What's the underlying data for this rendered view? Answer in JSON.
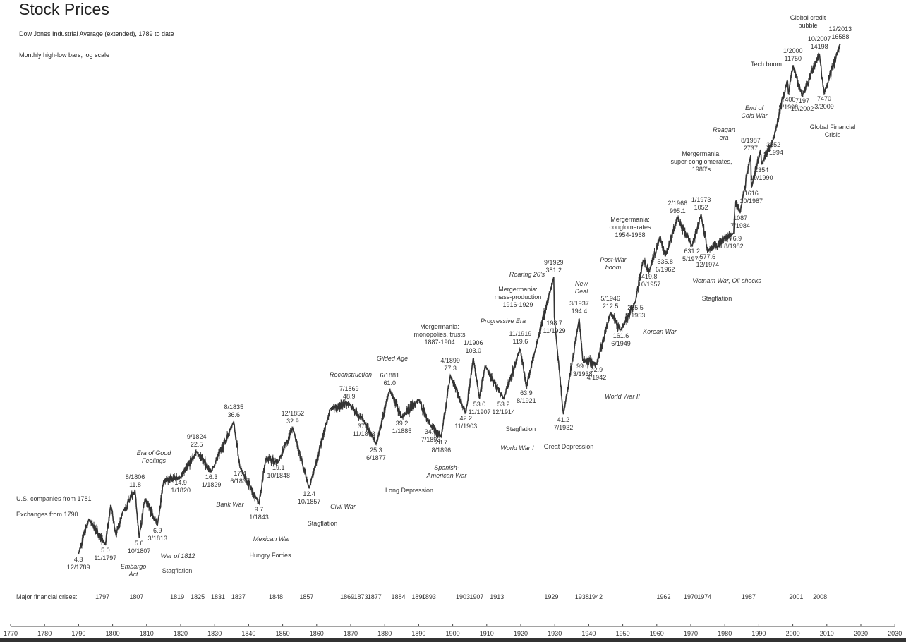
{
  "chart_data": {
    "type": "line",
    "title": "Stock Prices",
    "subtitle": "Dow Jones Industrial Average (extended), 1789 to date",
    "note": "Monthly high-low bars, log scale",
    "y_scale": "log",
    "ylim": [
      4,
      18000
    ],
    "xlim": [
      1770,
      2030
    ],
    "grid": false,
    "x_ticks": [
      1770,
      1780,
      1790,
      1800,
      1810,
      1820,
      1830,
      1840,
      1850,
      1860,
      1870,
      1880,
      1890,
      1900,
      1910,
      1920,
      1930,
      1940,
      1950,
      1960,
      1970,
      1980,
      1990,
      2000,
      2010,
      2020,
      2030
    ],
    "labeled_points": [
      {
        "date": "12/1789",
        "value": "4.3",
        "kind": "trough"
      },
      {
        "date": "11/1797",
        "value": "5.0",
        "kind": "trough"
      },
      {
        "date": "8/1806",
        "value": "11.8",
        "kind": "peak"
      },
      {
        "date": "10/1807",
        "value": "5.6",
        "kind": "trough"
      },
      {
        "date": "3/1813",
        "value": "6.9",
        "kind": "trough"
      },
      {
        "date": "1/1820",
        "value": "14.9",
        "kind": "trough"
      },
      {
        "date": "9/1824",
        "value": "22.5",
        "kind": "peak"
      },
      {
        "date": "1/1829",
        "value": "16.3",
        "kind": "trough"
      },
      {
        "date": "8/1835",
        "value": "36.6",
        "kind": "peak"
      },
      {
        "date": "6/1837",
        "value": "17.4",
        "kind": "trough"
      },
      {
        "date": "1/1843",
        "value": "9.7",
        "kind": "trough"
      },
      {
        "date": "10/1848",
        "value": "19.1",
        "kind": "trough"
      },
      {
        "date": "12/1852",
        "value": "32.9",
        "kind": "peak"
      },
      {
        "date": "10/1857",
        "value": "12.4",
        "kind": "trough"
      },
      {
        "date": "7/1869",
        "value": "48.9",
        "kind": "peak"
      },
      {
        "date": "11/1873",
        "value": "37.1",
        "kind": "trough"
      },
      {
        "date": "6/1877",
        "value": "25.3",
        "kind": "trough"
      },
      {
        "date": "6/1881",
        "value": "61.0",
        "kind": "peak"
      },
      {
        "date": "1/1885",
        "value": "39.2",
        "kind": "trough"
      },
      {
        "date": "7/1893",
        "value": "34.0",
        "kind": "trough"
      },
      {
        "date": "8/1896",
        "value": "28.7",
        "kind": "trough"
      },
      {
        "date": "4/1899",
        "value": "77.3",
        "kind": "peak"
      },
      {
        "date": "11/1903",
        "value": "42.2",
        "kind": "trough"
      },
      {
        "date": "1/1906",
        "value": "103.0",
        "kind": "peak"
      },
      {
        "date": "11/1907",
        "value": "53.0",
        "kind": "trough"
      },
      {
        "date": "12/1914",
        "value": "53.2",
        "kind": "trough"
      },
      {
        "date": "11/1919",
        "value": "119.6",
        "kind": "peak"
      },
      {
        "date": "8/1921",
        "value": "63.9",
        "kind": "trough"
      },
      {
        "date": "9/1929",
        "value": "381.2",
        "kind": "peak"
      },
      {
        "date": "11/1929",
        "value": "198.7",
        "kind": "trough"
      },
      {
        "date": "7/1932",
        "value": "41.2",
        "kind": "trough"
      },
      {
        "date": "3/1937",
        "value": "194.4",
        "kind": "peak"
      },
      {
        "date": "3/1938",
        "value": "99.0",
        "kind": "trough"
      },
      {
        "date": "4/1942",
        "value": "92.9",
        "kind": "trough"
      },
      {
        "date": "5/1946",
        "value": "212.5",
        "kind": "peak"
      },
      {
        "date": "6/1949",
        "value": "161.6",
        "kind": "trough"
      },
      {
        "date": "9/1953",
        "value": "255.5",
        "kind": "trough"
      },
      {
        "date": "10/1957",
        "value": "419.8",
        "kind": "trough"
      },
      {
        "date": "6/1962",
        "value": "535.8",
        "kind": "trough"
      },
      {
        "date": "2/1966",
        "value": "995.1",
        "kind": "peak"
      },
      {
        "date": "5/1970",
        "value": "631.2",
        "kind": "trough"
      },
      {
        "date": "1/1973",
        "value": "1052",
        "kind": "peak"
      },
      {
        "date": "12/1974",
        "value": "577.6",
        "kind": "trough"
      },
      {
        "date": "8/1982",
        "value": "776.9",
        "kind": "trough"
      },
      {
        "date": "7/1984",
        "value": "1087",
        "kind": "trough"
      },
      {
        "date": "8/1987",
        "value": "2737",
        "kind": "peak"
      },
      {
        "date": "10/1987",
        "value": "1616",
        "kind": "trough"
      },
      {
        "date": "10/1990",
        "value": "2354",
        "kind": "trough"
      },
      {
        "date": "4/1994",
        "value": "3552",
        "kind": "trough"
      },
      {
        "date": "9/1998",
        "value": "7400",
        "kind": "trough"
      },
      {
        "date": "1/2000",
        "value": "11750",
        "kind": "peak"
      },
      {
        "date": "10/2002",
        "value": "7197",
        "kind": "trough"
      },
      {
        "date": "10/2007",
        "value": "14198",
        "kind": "peak"
      },
      {
        "date": "3/2009",
        "value": "7470",
        "kind": "trough"
      },
      {
        "date": "12/2013",
        "value": "16588",
        "kind": "peak"
      }
    ],
    "shape_points": [
      [
        1793,
        7.5
      ],
      [
        1799.5,
        9.5
      ],
      [
        1801,
        5.8
      ],
      [
        1803,
        8.5
      ],
      [
        1809.5,
        10.5
      ],
      [
        1815,
        14
      ],
      [
        1845,
        20
      ],
      [
        1864,
        45
      ],
      [
        1890,
        52
      ],
      [
        1909.5,
        90
      ],
      [
        1924,
        110
      ],
      [
        1956,
        500
      ],
      [
        1961,
        730
      ],
      [
        1983,
        1280
      ],
      [
        1990.5,
        2999
      ],
      [
        1998.4,
        9300
      ]
    ],
    "annotations": [
      {
        "text": "U.S. companies from 1781",
        "italic": false
      },
      {
        "text": "Exchanges from 1790",
        "italic": false
      },
      {
        "text": "Era of Good\nFeelings",
        "italic": true
      },
      {
        "text": "Embargo\nAct",
        "italic": true
      },
      {
        "text": "War of 1812",
        "italic": true
      },
      {
        "text": "Stagflation",
        "italic": false
      },
      {
        "text": "Bank War",
        "italic": true
      },
      {
        "text": "Mexican War",
        "italic": true
      },
      {
        "text": "Hungry Forties",
        "italic": false
      },
      {
        "text": "Stagflation",
        "italic": false
      },
      {
        "text": "Civil War",
        "italic": true
      },
      {
        "text": "Reconstruction",
        "italic": true
      },
      {
        "text": "Gilded Age",
        "italic": true
      },
      {
        "text": "Long Depression",
        "italic": false
      },
      {
        "text": "Spanish-\nAmerican War",
        "italic": true
      },
      {
        "text": "Mergermania:\nmonopolies, trusts\n1887-1904",
        "italic": false
      },
      {
        "text": "Progressive Era",
        "italic": true
      },
      {
        "text": "Stagflation",
        "italic": false
      },
      {
        "text": "World War I",
        "italic": true
      },
      {
        "text": "Great Depression",
        "italic": false
      },
      {
        "text": "Mergermania:\nmass-production\n1916-1929",
        "italic": false
      },
      {
        "text": "Roaring 20's",
        "italic": true
      },
      {
        "text": "New\nDeal",
        "italic": true
      },
      {
        "text": "World War II",
        "italic": true
      },
      {
        "text": "Post-War\nboom",
        "italic": true
      },
      {
        "text": "Korean War",
        "italic": true
      },
      {
        "text": "Mergermania:\nconglomerates\n1954-1968",
        "italic": false
      },
      {
        "text": "Vietnam War, Oil shocks",
        "italic": true
      },
      {
        "text": "Stagflation",
        "italic": false
      },
      {
        "text": "Mergermania:\nsuper-conglomerates,\n1980's",
        "italic": false
      },
      {
        "text": "Reagan\nera",
        "italic": true
      },
      {
        "text": "End of\nCold War",
        "italic": true
      },
      {
        "text": "Tech boom",
        "italic": false
      },
      {
        "text": "Global credit\nbubble",
        "italic": false
      },
      {
        "text": "Global Financial\nCrisis",
        "italic": false
      }
    ],
    "crises_label": "Major financial crises:",
    "crises_years": [
      1797,
      1807,
      1819,
      1825,
      1831,
      1837,
      1848,
      1857,
      1869,
      1873,
      1877,
      1884,
      1890,
      1893,
      1903,
      1907,
      1913,
      1929,
      1938,
      1942,
      1962,
      1970,
      1974,
      1987,
      2001,
      2008
    ],
    "line_color": "#333333"
  }
}
